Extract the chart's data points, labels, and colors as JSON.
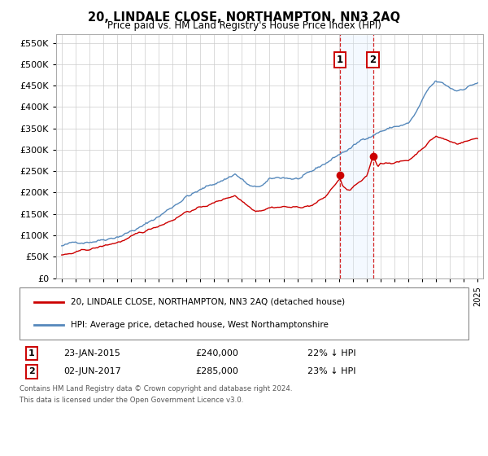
{
  "title": "20, LINDALE CLOSE, NORTHAMPTON, NN3 2AQ",
  "subtitle": "Price paid vs. HM Land Registry's House Price Index (HPI)",
  "legend_line1": "20, LINDALE CLOSE, NORTHAMPTON, NN3 2AQ (detached house)",
  "legend_line2": "HPI: Average price, detached house, West Northamptonshire",
  "annotation1_date": "23-JAN-2015",
  "annotation1_price": "£240,000",
  "annotation1_hpi": "22% ↓ HPI",
  "annotation2_date": "02-JUN-2017",
  "annotation2_price": "£285,000",
  "annotation2_hpi": "23% ↓ HPI",
  "footnote1": "Contains HM Land Registry data © Crown copyright and database right 2024.",
  "footnote2": "This data is licensed under the Open Government Licence v3.0.",
  "hpi_color": "#5588bb",
  "price_color": "#cc0000",
  "shaded_color": "#ddeeff",
  "annotation_box_color": "#cc0000",
  "ylim_max": 570000,
  "sale1_year": 2015.07,
  "sale1_price": 240000,
  "sale2_year": 2017.46,
  "sale2_price": 285000
}
